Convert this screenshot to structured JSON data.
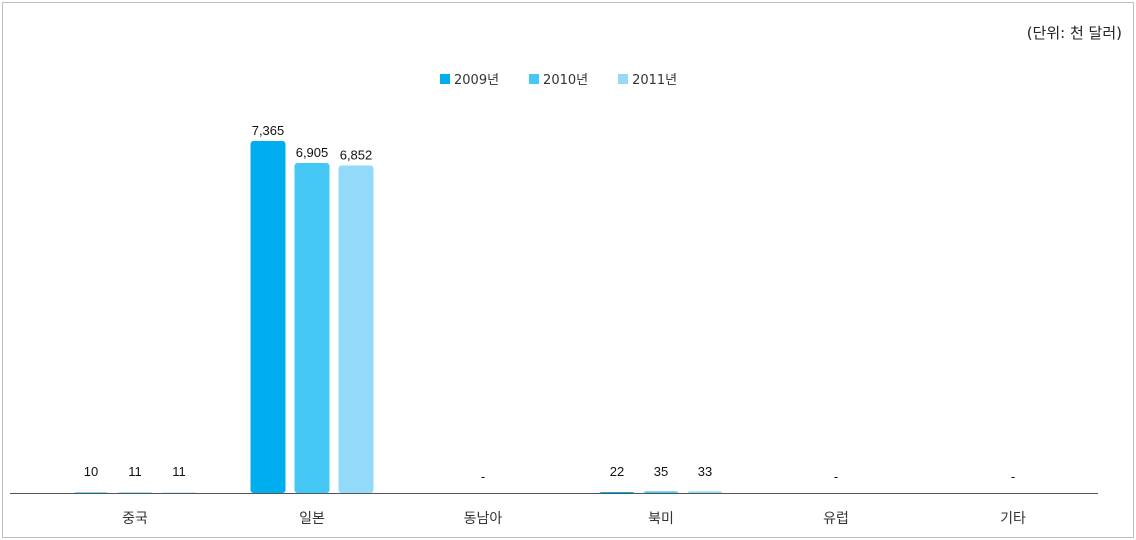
{
  "unit_label": "(단위: 천 달러)",
  "colors": {
    "series_2009": "#00aeef",
    "series_2010": "#45c8f5",
    "series_2011": "#92daf8",
    "axis": "#555555"
  },
  "chart_data": {
    "type": "bar",
    "title": "",
    "xlabel": "",
    "ylabel": "",
    "categories": [
      "중국",
      "일본",
      "동남아",
      "북미",
      "유럽",
      "기타"
    ],
    "series": [
      {
        "name": "2009년",
        "values": [
          10,
          7365,
          null,
          22,
          null,
          null
        ],
        "labels": [
          "10",
          "7,365",
          "-",
          "22",
          "-",
          "-"
        ]
      },
      {
        "name": "2010년",
        "values": [
          11,
          6905,
          null,
          35,
          null,
          null
        ],
        "labels": [
          "11",
          "6,905",
          "",
          "35",
          "",
          ""
        ]
      },
      {
        "name": "2011년",
        "values": [
          11,
          6852,
          null,
          33,
          null,
          null
        ],
        "labels": [
          "11",
          "6,852",
          "",
          "33",
          "",
          ""
        ]
      }
    ],
    "ylim": [
      0,
      7500
    ],
    "grid": false,
    "legend_position": "top-center"
  }
}
